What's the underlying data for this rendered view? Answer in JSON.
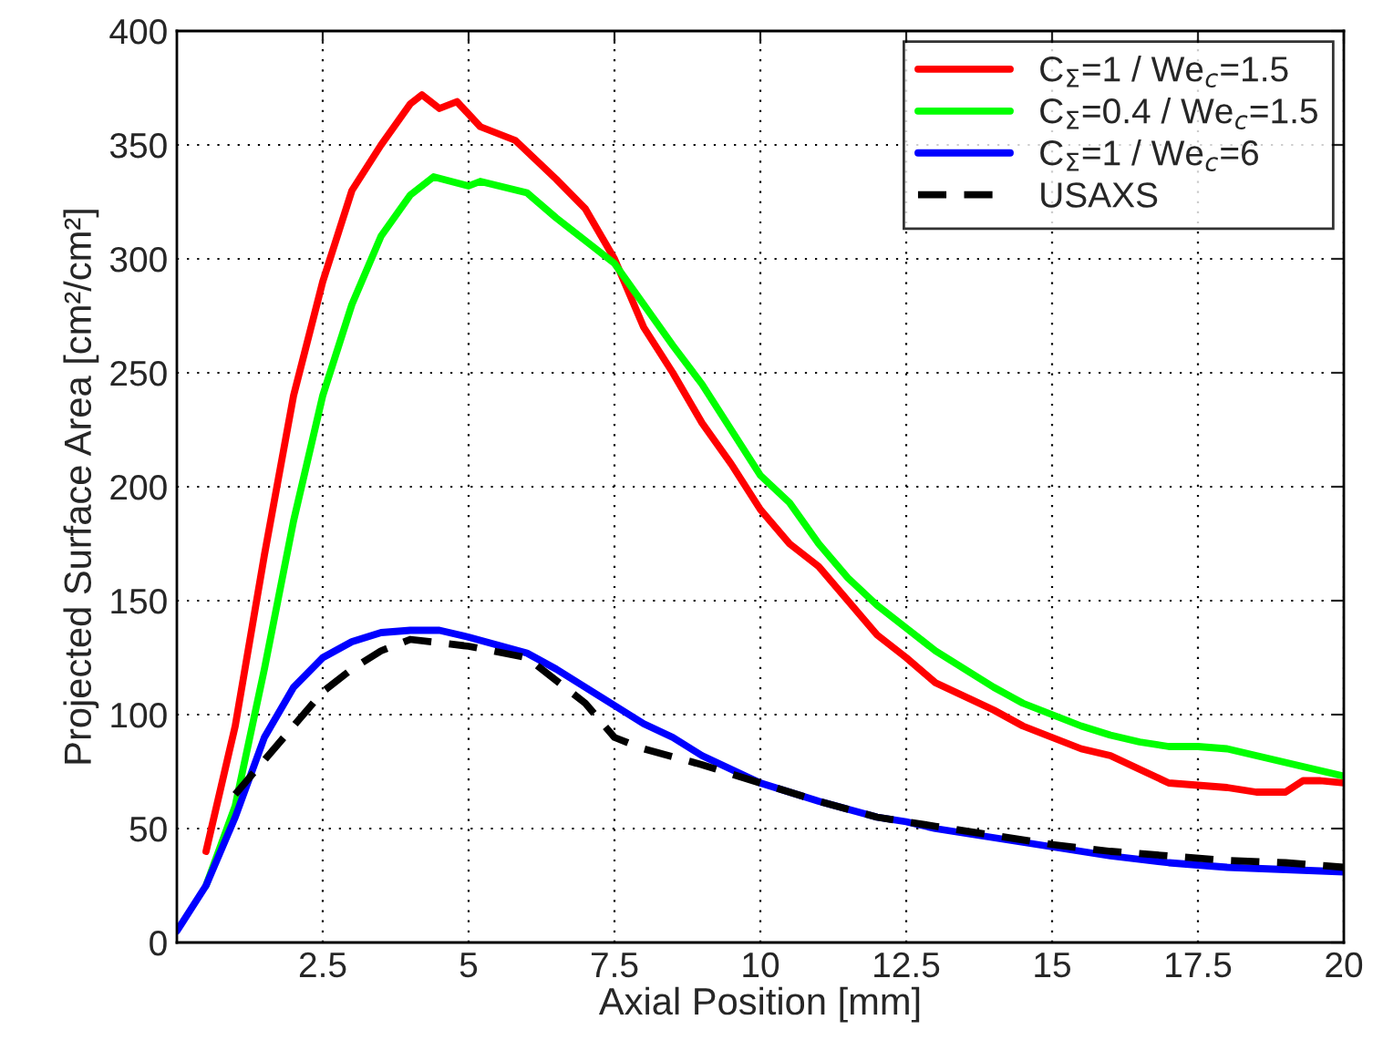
{
  "chart_data": {
    "type": "line",
    "xlabel": "Axial Position [mm]",
    "ylabel": "Projected Surface Area [cm²/cm²]",
    "xlim": [
      0,
      20
    ],
    "xticks": [
      2.5,
      5,
      7.5,
      10,
      12.5,
      15,
      17.5,
      20
    ],
    "ylim": [
      0,
      400
    ],
    "yticks": [
      0,
      50,
      100,
      150,
      200,
      250,
      300,
      350,
      400
    ],
    "grid": true,
    "legend": "top right",
    "line_style": "solid",
    "marker": "none",
    "series": [
      {
        "name": "C$_{Σ}$=1 / We$_{c}$=1.5",
        "color": "#ff0000",
        "x": [
          0.5,
          1,
          1.5,
          2,
          2.5,
          3,
          3.5,
          4,
          4.2,
          4.5,
          4.8,
          5.2,
          5.8,
          6.5,
          7,
          7.5,
          8,
          8.5,
          9,
          9.5,
          10,
          10.5,
          11,
          11.5,
          12,
          12.5,
          13,
          13.5,
          14,
          14.5,
          15,
          15.5,
          16,
          16.5,
          17,
          17.5,
          18,
          18.5,
          19,
          19.3,
          19.6,
          20
        ],
        "values": [
          40,
          95,
          170,
          240,
          290,
          330,
          350,
          368,
          372,
          366,
          369,
          358,
          352,
          335,
          322,
          300,
          270,
          250,
          228,
          210,
          190,
          175,
          165,
          150,
          135,
          125,
          114,
          108,
          102,
          95,
          90,
          85,
          82,
          76,
          70,
          69,
          68,
          66,
          66,
          71,
          71,
          70
        ]
      },
      {
        "name": "C$_{Σ}$=0.4 / We$_{c}$=1.5",
        "color": "#00ff00",
        "x": [
          0.5,
          1,
          1.5,
          2,
          2.5,
          3,
          3.5,
          4,
          4.4,
          5,
          5.2,
          6,
          6.5,
          7,
          7.5,
          8,
          8.5,
          9,
          9.5,
          10,
          10.5,
          11,
          11.5,
          12,
          12.5,
          13,
          13.5,
          14,
          14.5,
          15,
          15.5,
          16,
          16.5,
          17,
          17.5,
          18,
          18.5,
          19,
          19.5,
          20
        ],
        "values": [
          25,
          60,
          120,
          185,
          240,
          280,
          310,
          328,
          336,
          332,
          334,
          329,
          318,
          308,
          298,
          280,
          262,
          245,
          225,
          205,
          193,
          175,
          160,
          148,
          138,
          128,
          120,
          112,
          105,
          100,
          95,
          91,
          88,
          86,
          86,
          85,
          82,
          79,
          76,
          73
        ]
      },
      {
        "name": "C$_{Σ}$=1 / We$_{c}$=6",
        "color": "#0000ff",
        "x": [
          0,
          0.5,
          1,
          1.5,
          2,
          2.5,
          3,
          3.5,
          4,
          4.5,
          5,
          6,
          6.5,
          7,
          7.5,
          8,
          8.5,
          9,
          9.5,
          10,
          11,
          12,
          12.5,
          13,
          14,
          15,
          16,
          17,
          18,
          19,
          20
        ],
        "values": [
          5,
          25,
          55,
          90,
          112,
          125,
          132,
          136,
          137,
          137,
          134,
          127,
          120,
          112,
          104,
          96,
          90,
          82,
          76,
          70,
          62,
          55,
          53,
          50,
          46,
          42,
          38,
          35,
          33,
          32,
          31
        ]
      },
      {
        "name": "USAXS",
        "color": "#000000",
        "line_style": "dashed",
        "x": [
          1,
          1.5,
          2,
          2.5,
          3,
          3.5,
          4,
          5,
          6,
          7,
          7.5,
          8,
          9,
          10,
          11,
          12,
          13,
          14,
          15,
          16,
          17,
          18,
          19,
          20
        ],
        "values": [
          65,
          80,
          95,
          110,
          120,
          128,
          133,
          130,
          125,
          105,
          90,
          85,
          78,
          70,
          62,
          55,
          51,
          47,
          43,
          40,
          38,
          36,
          35,
          33
        ]
      }
    ]
  }
}
